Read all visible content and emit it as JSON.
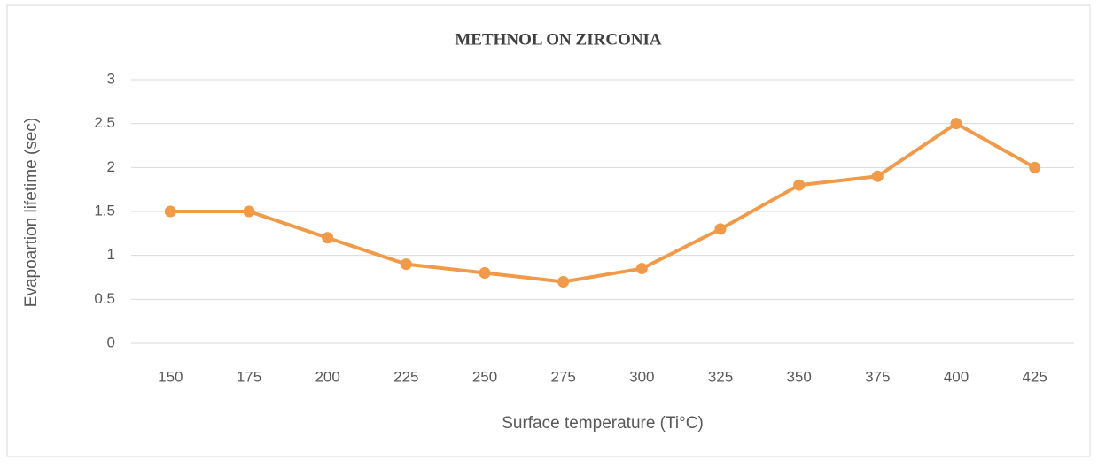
{
  "chart_data": {
    "type": "line",
    "title": "METHNOL ON ZIRCONIA",
    "x_label": "Surface temperature (Ti°C)",
    "y_label": "Evapoartion lifetime (sec)",
    "categories": [
      "150",
      "175",
      "200",
      "225",
      "250",
      "275",
      "300",
      "325",
      "350",
      "375",
      "400",
      "425"
    ],
    "series": [
      {
        "name": "Evapoartion lifetime (sec)",
        "color": "#f09a4a",
        "values": [
          1.5,
          1.5,
          1.2,
          0.9,
          0.8,
          0.7,
          0.85,
          1.3,
          1.8,
          1.9,
          2.5,
          2.0
        ]
      }
    ],
    "ylim": [
      0,
      3
    ],
    "yticks": [
      0,
      0.5,
      1,
      1.5,
      2,
      2.5,
      3
    ],
    "grid": true
  }
}
